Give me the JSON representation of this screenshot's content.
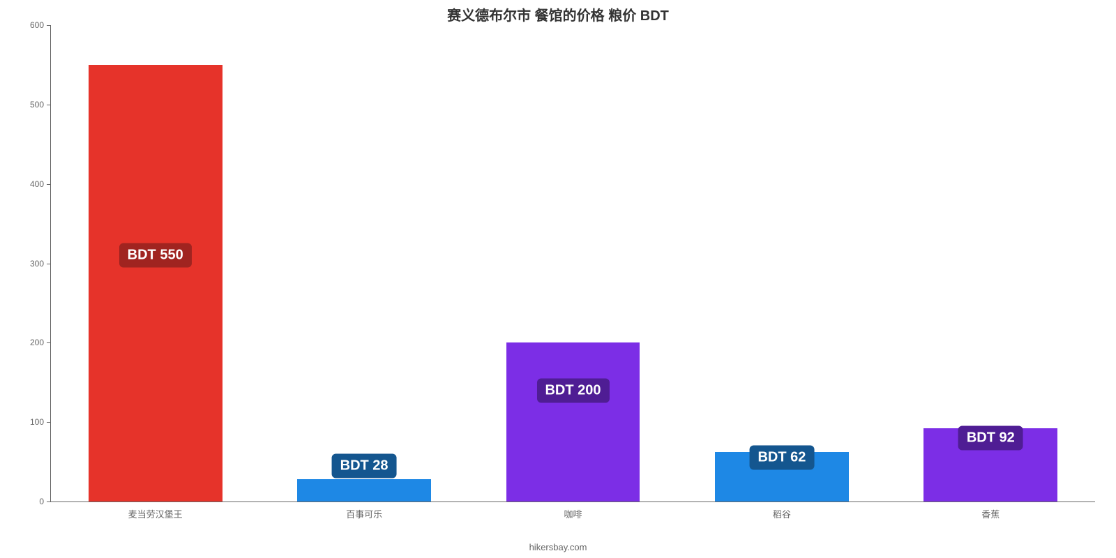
{
  "chart": {
    "type": "bar",
    "title": "赛义德布尔市 餐馆的价格 粮价 BDT",
    "title_fontsize": 20,
    "title_color": "#333333",
    "background_color": "#ffffff",
    "axis_color": "#666666",
    "tick_label_color": "#666666",
    "tick_label_fontsize": 12,
    "xtick_fontsize": 13,
    "y": {
      "min": 0,
      "max": 600,
      "ticks": [
        0,
        100,
        200,
        300,
        400,
        500,
        600
      ]
    },
    "bar_width_ratio": 0.64,
    "categories": [
      "麦当劳汉堡王",
      "百事可乐",
      "咖啡",
      "稻谷",
      "香蕉"
    ],
    "values": [
      550,
      28,
      200,
      62,
      92
    ],
    "bar_colors": [
      "#e6332a",
      "#1e88e5",
      "#7c2ee6",
      "#1e88e5",
      "#7c2ee6"
    ],
    "badge_labels": [
      "BDT 550",
      "BDT 28",
      "BDT 200",
      "BDT 62",
      "BDT 92"
    ],
    "badge_bg_colors": [
      "#a02420",
      "#14568f",
      "#4f1d94",
      "#14568f",
      "#4f1d94"
    ],
    "badge_text_color": "#ffffff",
    "badge_fontsize": 20,
    "badge_y_values": [
      310,
      45,
      140,
      55,
      80
    ],
    "attribution": "hikersbay.com",
    "attribution_fontsize": 13,
    "attribution_color": "#666666"
  }
}
